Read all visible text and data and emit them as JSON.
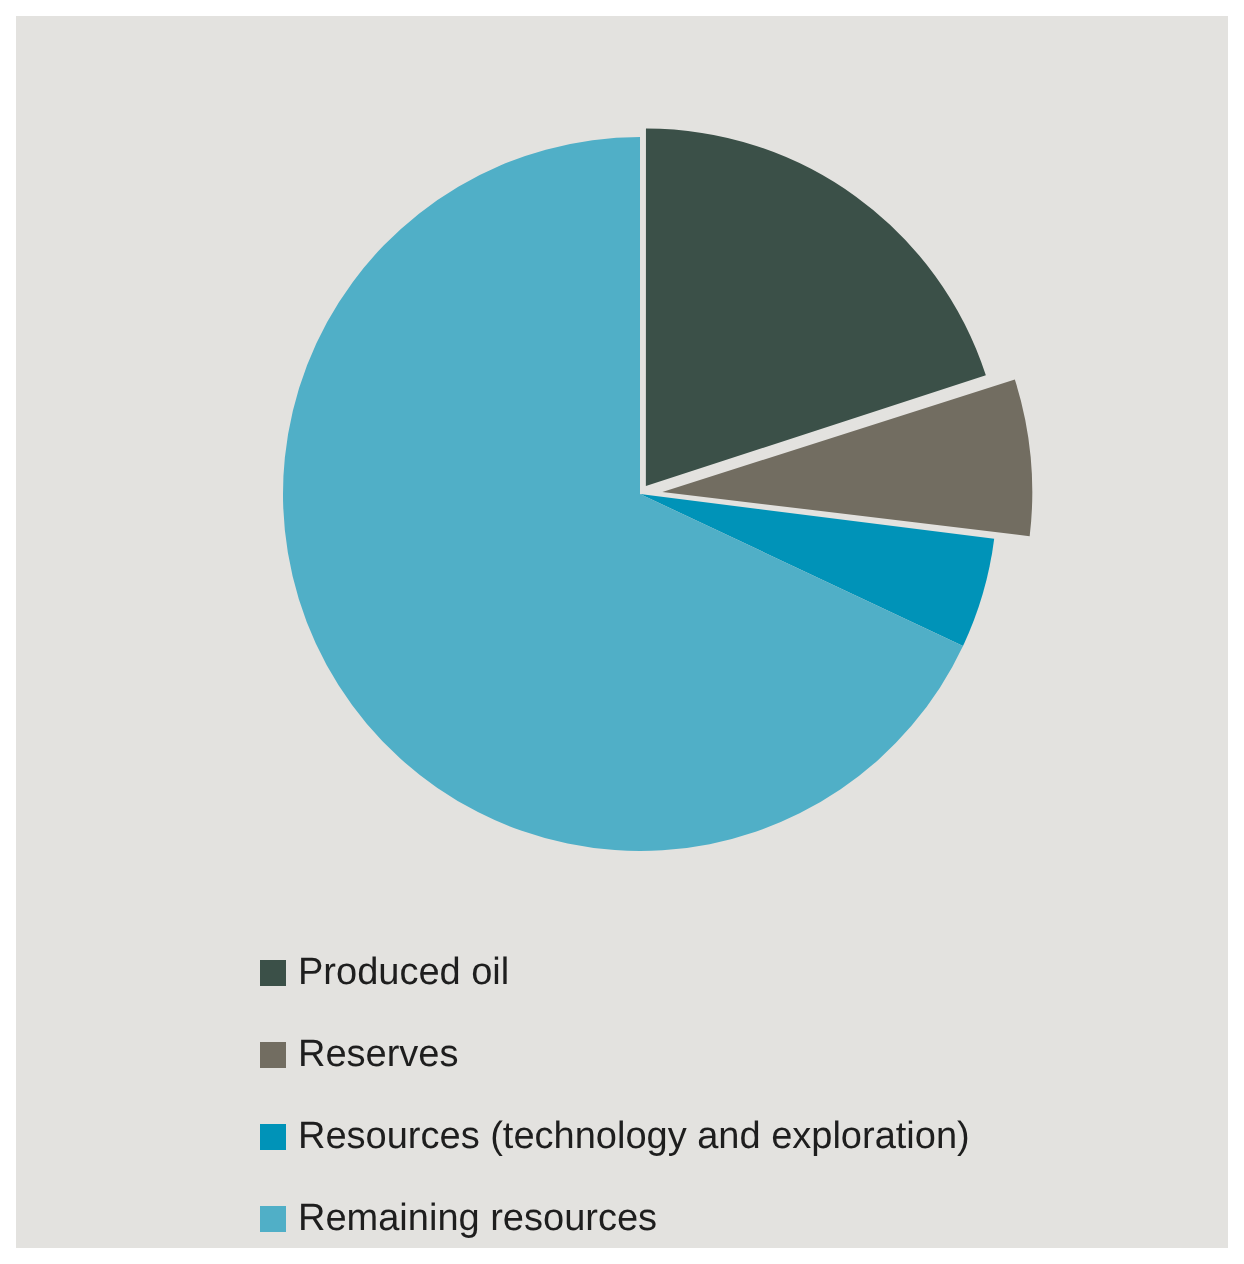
{
  "chart_data": {
    "type": "pie",
    "categories": [
      "Produced oil",
      "Reserves",
      "Resources (technology and exploration)",
      "Remaining resources"
    ],
    "values": [
      20,
      7,
      5,
      68
    ],
    "colors": [
      "#3b5048",
      "#726d61",
      "#0093b8",
      "#50afc7"
    ],
    "legend": "bottom"
  }
}
